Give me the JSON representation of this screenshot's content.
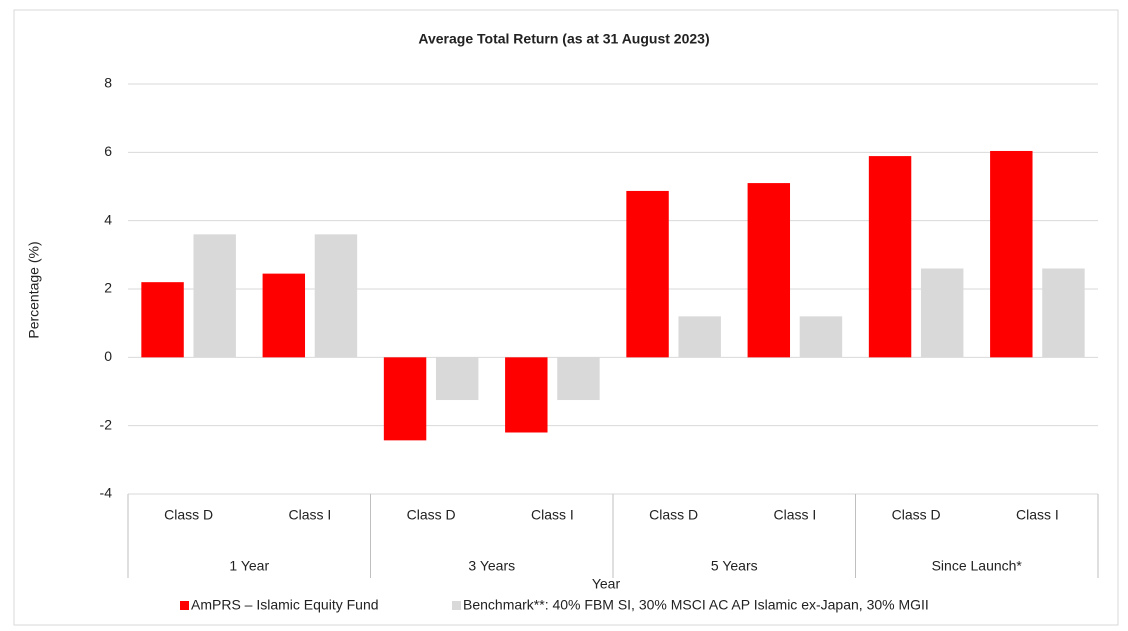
{
  "chart_data": {
    "type": "bar",
    "title": "Average Total Return (as at 31 August 2023)",
    "x_label": "Year",
    "y_label": "Percentage (%)",
    "category_groups": [
      {
        "label": "1 Year",
        "categories": [
          "Class D",
          "Class I"
        ]
      },
      {
        "label": "3 Years",
        "categories": [
          "Class D",
          "Class I"
        ]
      },
      {
        "label": "5 Years",
        "categories": [
          "Class D",
          "Class I"
        ]
      },
      {
        "label": "Since Launch*",
        "categories": [
          "Class D",
          "Class I"
        ]
      }
    ],
    "series": [
      {
        "name": "AmPRS – Islamic Equity Fund",
        "color": "#ff0000",
        "values": [
          2.2,
          2.45,
          -2.43,
          -2.2,
          4.87,
          5.1,
          5.89,
          6.04
        ]
      },
      {
        "name": "Benchmark**: 40% FBM SI, 30% MSCI AC AP Islamic ex-Japan, 30% MGII",
        "color": "#d9d9d9",
        "values": [
          3.6,
          3.6,
          -1.25,
          -1.25,
          1.2,
          1.2,
          2.6,
          2.6
        ]
      }
    ],
    "ylim": [
      -4,
      8
    ],
    "yticks": [
      -4,
      -2,
      0,
      2,
      4,
      6,
      8
    ],
    "grid": true,
    "legend": "bottom"
  }
}
